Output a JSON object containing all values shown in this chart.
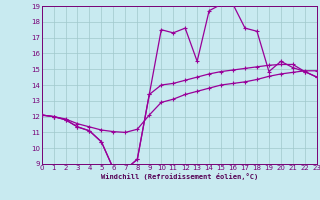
{
  "xlabel": "Windchill (Refroidissement éolien,°C)",
  "xlim": [
    0,
    23
  ],
  "ylim": [
    9,
    19
  ],
  "xticks": [
    0,
    1,
    2,
    3,
    4,
    5,
    6,
    7,
    8,
    9,
    10,
    11,
    12,
    13,
    14,
    15,
    16,
    17,
    18,
    19,
    20,
    21,
    22,
    23
  ],
  "yticks": [
    9,
    10,
    11,
    12,
    13,
    14,
    15,
    16,
    17,
    18,
    19
  ],
  "bg_color": "#c8eaf0",
  "grid_color": "#a0c8cc",
  "line_color": "#990099",
  "main_x": [
    0,
    1,
    2,
    3,
    4,
    5,
    6,
    7,
    8,
    9,
    10,
    11,
    12,
    13,
    14,
    15,
    16,
    17,
    18,
    19,
    20,
    21,
    22,
    23
  ],
  "main_y": [
    12.1,
    12.0,
    11.8,
    11.35,
    11.1,
    10.4,
    8.7,
    8.65,
    9.3,
    13.4,
    17.5,
    17.3,
    17.6,
    15.5,
    18.7,
    19.1,
    19.1,
    17.6,
    17.4,
    14.85,
    15.5,
    15.1,
    14.85,
    14.5
  ],
  "upper_y": [
    12.1,
    12.0,
    11.85,
    11.55,
    11.35,
    11.15,
    11.05,
    11.0,
    11.2,
    12.1,
    12.9,
    13.1,
    13.4,
    13.6,
    13.8,
    14.0,
    14.1,
    14.2,
    14.35,
    14.55,
    14.7,
    14.8,
    14.9,
    14.9
  ],
  "lower_y": [
    12.1,
    12.0,
    11.8,
    11.35,
    11.1,
    10.4,
    8.7,
    8.65,
    9.3,
    13.4,
    14.0,
    14.1,
    14.3,
    14.5,
    14.7,
    14.85,
    14.95,
    15.05,
    15.15,
    15.25,
    15.3,
    15.3,
    14.85,
    14.5
  ]
}
